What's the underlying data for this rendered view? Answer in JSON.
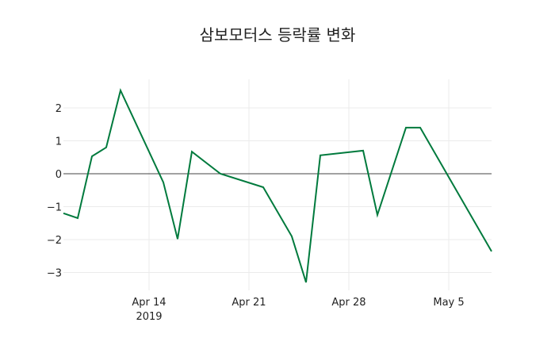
{
  "chart_data": {
    "type": "line",
    "title": "삼보모터스 등락률 변화",
    "xlabel": "",
    "ylabel": "",
    "x": [
      "2019-04-08",
      "2019-04-09",
      "2019-04-10",
      "2019-04-11",
      "2019-04-12",
      "2019-04-15",
      "2019-04-16",
      "2019-04-17",
      "2019-04-19",
      "2019-04-22",
      "2019-04-24",
      "2019-04-25",
      "2019-04-26",
      "2019-04-29",
      "2019-04-30",
      "2019-05-02",
      "2019-05-03",
      "2019-05-08"
    ],
    "series": [
      {
        "name": "등락률",
        "color": "#007a3d",
        "values": [
          -1.2,
          -1.35,
          0.53,
          0.8,
          2.53,
          -0.26,
          -1.98,
          0.67,
          0.0,
          -0.41,
          -1.9,
          -3.3,
          0.56,
          0.7,
          -1.25,
          1.4,
          1.4,
          -2.36
        ]
      }
    ],
    "x_ticks": [
      {
        "date": "2019-04-14",
        "label": "Apr 14",
        "sublabel": "2019"
      },
      {
        "date": "2019-04-21",
        "label": "Apr 21",
        "sublabel": ""
      },
      {
        "date": "2019-04-28",
        "label": "Apr 28",
        "sublabel": ""
      },
      {
        "date": "2019-05-05",
        "label": "May 5",
        "sublabel": ""
      }
    ],
    "y_ticks": [
      2,
      1,
      0,
      -1,
      -2,
      -3
    ],
    "y_tick_labels": [
      "2",
      "1",
      "0",
      "−1",
      "−2",
      "−3"
    ],
    "ylim": [
      -3.5,
      2.87
    ],
    "xlim": [
      "2019-04-08",
      "2019-05-08"
    ],
    "grid": true,
    "zeroline": true,
    "legend": "none"
  }
}
